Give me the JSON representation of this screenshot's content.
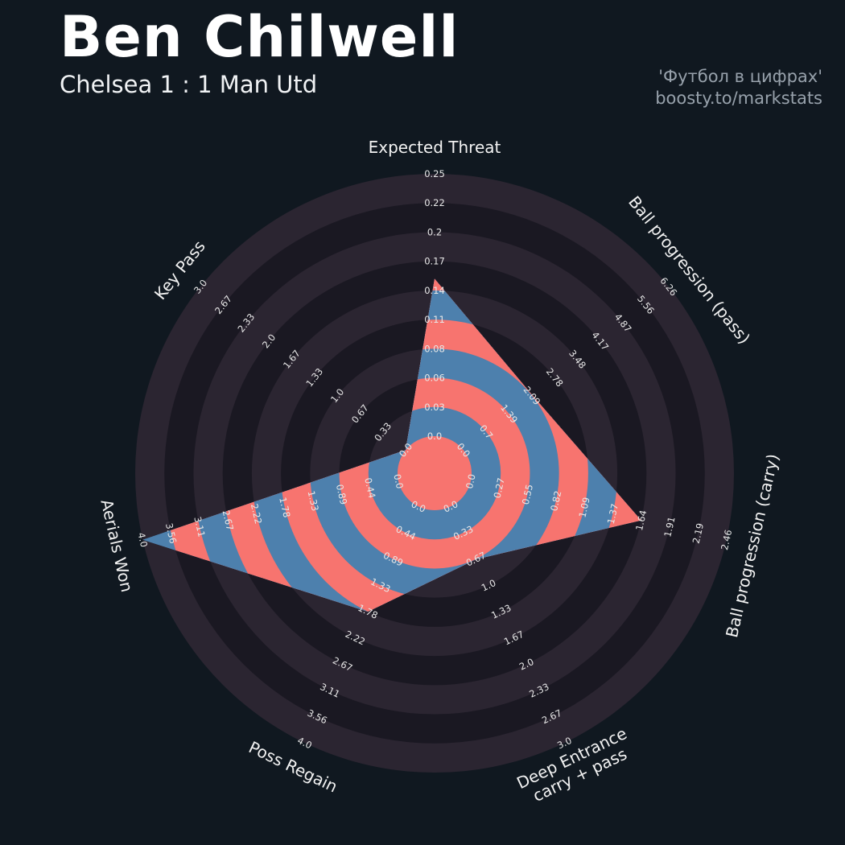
{
  "header": {
    "title": "Ben Chilwell",
    "subtitle": "Chelsea 1 : 1 Man Utd",
    "credit_line1": "'Футбол в цифрах'",
    "credit_line2": "boosty.to/markstats"
  },
  "colors": {
    "background": "#101820",
    "ring_dark_a": "#2b2531",
    "ring_dark_b": "#1a1822",
    "radar_fill": "#4d80ad",
    "ring_inner": "#f7746f",
    "tick_text": "#e8e8e8",
    "title_text": "#f2f2f2"
  },
  "chart_data": {
    "type": "radar",
    "title": "Ben Chilwell — Chelsea 1 : 1 Man Utd",
    "num_rings": 9,
    "legend_position": "none",
    "grid": "concentric-rings",
    "params": [
      {
        "label": "Expected Threat",
        "min": 0,
        "max": 0.25,
        "value": 0.15,
        "ticks": [
          "0.0",
          "0.03",
          "0.06",
          "0.08",
          "0.11",
          "0.14",
          "0.17",
          "0.2",
          "0.22",
          "0.25"
        ]
      },
      {
        "label": "Ball progression (pass)",
        "min": 0,
        "max": 6.26,
        "value": 2.1,
        "ticks": [
          "0.0",
          "0.7",
          "1.39",
          "2.09",
          "2.78",
          "3.48",
          "4.17",
          "4.87",
          "5.56",
          "6.26"
        ]
      },
      {
        "label": "Ball progression (carry)",
        "min": 0,
        "max": 2.46,
        "value": 1.64,
        "ticks": [
          "0.0",
          "0.27",
          "0.55",
          "0.82",
          "1.09",
          "1.37",
          "1.64",
          "1.91",
          "2.19",
          "2.46"
        ]
      },
      {
        "label": "Deep Entrance\ncarry + pass",
        "min": 0,
        "max": 3.0,
        "value": 0.67,
        "ticks": [
          "0.0",
          "0.33",
          "0.67",
          "1.0",
          "1.33",
          "1.67",
          "2.0",
          "2.33",
          "2.67",
          "3.0"
        ]
      },
      {
        "label": "Poss Regain",
        "min": 0,
        "max": 4.0,
        "value": 1.78,
        "ticks": [
          "0.0",
          "0.44",
          "0.89",
          "1.33",
          "1.78",
          "2.22",
          "2.67",
          "3.11",
          "3.56",
          "4.0"
        ]
      },
      {
        "label": "Aerials Won",
        "min": 0,
        "max": 4.0,
        "value": 4.0,
        "ticks": [
          "0.0",
          "0.44",
          "0.89",
          "1.33",
          "1.78",
          "2.22",
          "2.67",
          "3.11",
          "3.56",
          "4.0"
        ]
      },
      {
        "label": "Key Pass",
        "min": 0,
        "max": 3.0,
        "value": 0.0,
        "ticks": [
          "0.0",
          "0.33",
          "0.67",
          "1.0",
          "1.33",
          "1.67",
          "2.0",
          "2.33",
          "2.67",
          "3.0"
        ]
      }
    ]
  }
}
